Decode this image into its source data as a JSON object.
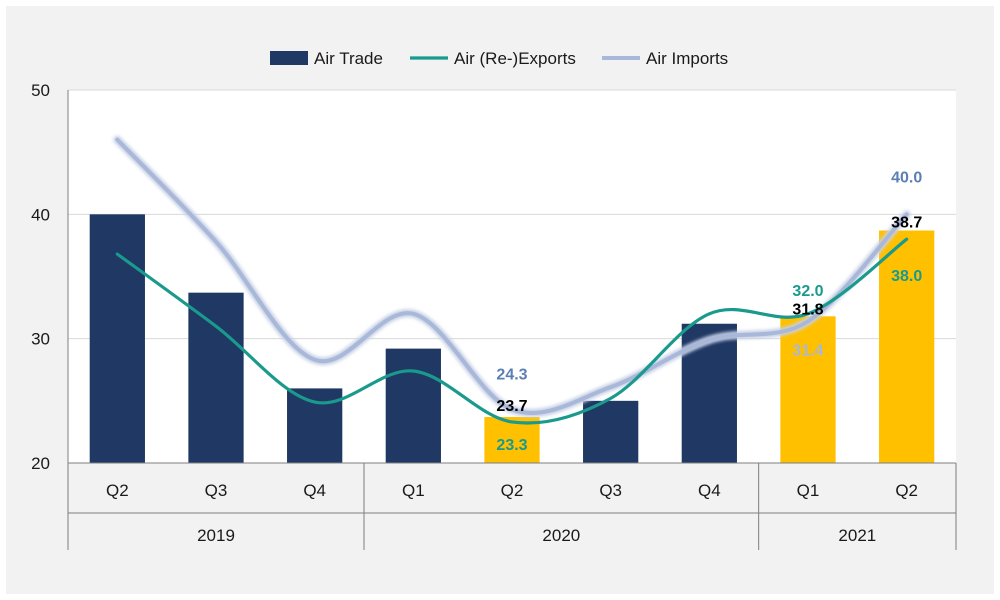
{
  "chart_data": {
    "type": "bar",
    "title": "",
    "xlabel": "",
    "ylabel": "",
    "ylim": [
      20,
      50
    ],
    "yticks": [
      20,
      30,
      40,
      50
    ],
    "grid": true,
    "legend_position": "top",
    "categories": [
      "Q2",
      "Q3",
      "Q4",
      "Q1",
      "Q2",
      "Q3",
      "Q4",
      "Q1",
      "Q2"
    ],
    "years": [
      {
        "label": "2019",
        "quarters": 3
      },
      {
        "label": "2020",
        "quarters": 4
      },
      {
        "label": "2021",
        "quarters": 2
      }
    ],
    "series": [
      {
        "name": "Air Trade",
        "kind": "bar",
        "color": "#1f3864",
        "highlight_color": "#ffc000",
        "values": [
          40.0,
          33.7,
          26.0,
          29.2,
          23.7,
          25.0,
          31.2,
          31.8,
          38.7
        ],
        "highlighted": [
          false,
          false,
          false,
          false,
          true,
          false,
          false,
          true,
          true
        ]
      },
      {
        "name": "Air (Re-)Exports",
        "kind": "line",
        "color": "#1a9a8c",
        "values": [
          36.8,
          31.0,
          24.9,
          27.4,
          23.3,
          25.2,
          32.0,
          32.0,
          38.0
        ]
      },
      {
        "name": "Air Imports",
        "kind": "line",
        "color": "#a9b8d8",
        "values": [
          46.0,
          37.8,
          28.3,
          32.0,
          24.3,
          26.1,
          29.9,
          31.4,
          40.0
        ]
      }
    ],
    "data_labels": [
      {
        "category_index": 4,
        "series": "Air Imports",
        "text": "24.3",
        "color": "#5b7fb5"
      },
      {
        "category_index": 4,
        "series": "Air Trade",
        "text": "23.7",
        "color": "#000000"
      },
      {
        "category_index": 4,
        "series": "Air (Re-)Exports",
        "text": "23.3",
        "color": "#1a9a8c"
      },
      {
        "category_index": 7,
        "series": "Air (Re-)Exports",
        "text": "32.0",
        "color": "#1a9a8c"
      },
      {
        "category_index": 7,
        "series": "Air Trade",
        "text": "31.8",
        "color": "#000000"
      },
      {
        "category_index": 7,
        "series": "Air Imports",
        "text": "31.4",
        "color": "#a9b8d8"
      },
      {
        "category_index": 8,
        "series": "Air Imports",
        "text": "40.0",
        "color": "#5b7fb5"
      },
      {
        "category_index": 8,
        "series": "Air Trade",
        "text": "38.7",
        "color": "#000000"
      },
      {
        "category_index": 8,
        "series": "Air (Re-)Exports",
        "text": "38.0",
        "color": "#1a9a8c"
      }
    ]
  }
}
